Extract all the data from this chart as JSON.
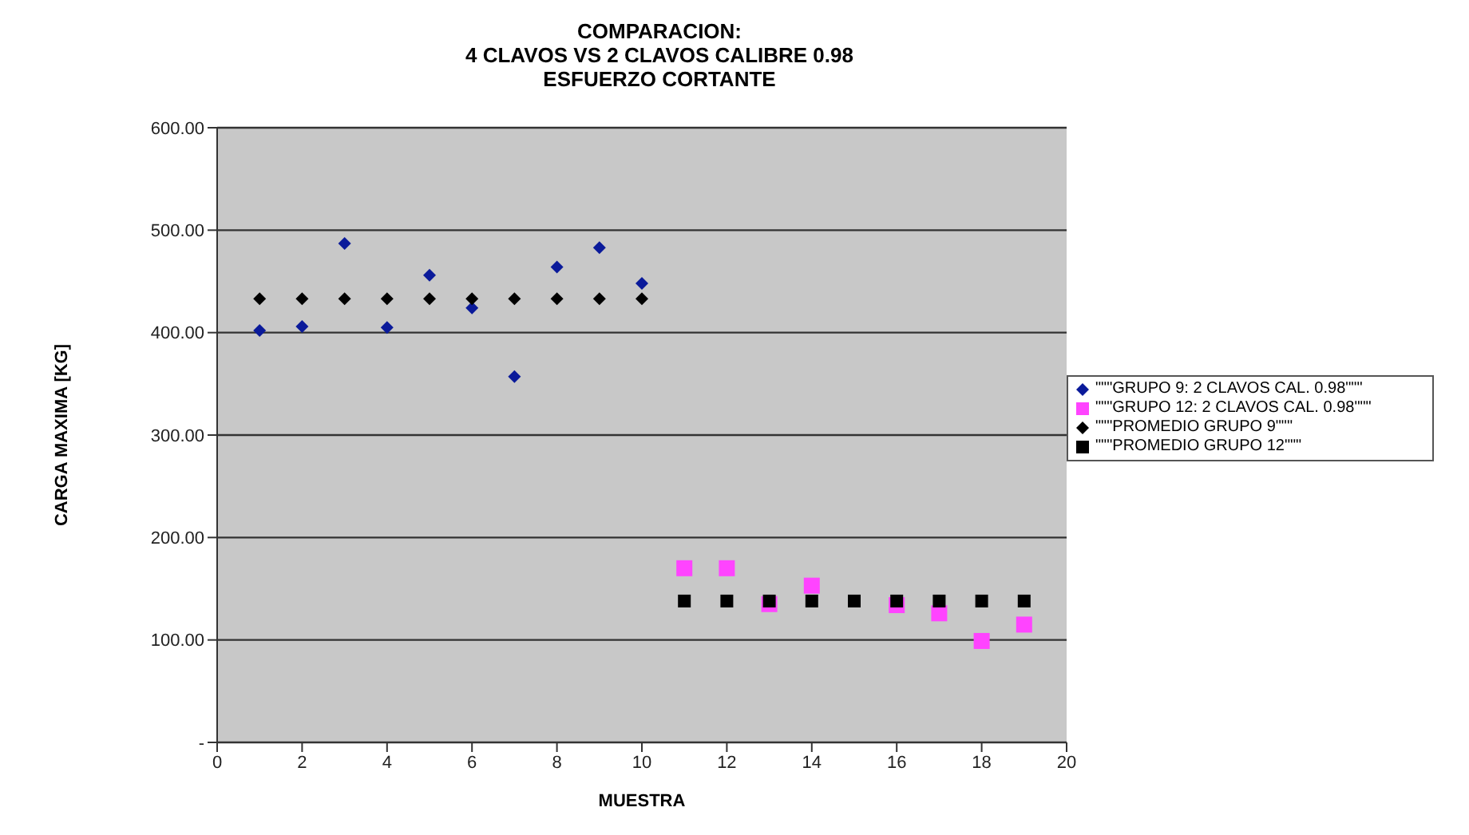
{
  "chart_data": {
    "type": "scatter",
    "title": "COMPARACION:\n4 CLAVOS VS 2 CLAVOS CALIBRE 0.98\nESFUERZO CORTANTE",
    "xlabel": "MUESTRA",
    "ylabel": "CARGA MAXIMA [KG]",
    "series": [
      {
        "name": "\"\"\"GRUPO 9:  2 CLAVOS CAL. 0.98\"\"\"",
        "color": "#0a1a9a",
        "marker": "diamond",
        "x": [
          1,
          2,
          3,
          4,
          5,
          6,
          7,
          8,
          9,
          10
        ],
        "values": [
          402,
          406,
          487,
          405,
          456,
          424,
          357,
          464,
          483,
          448
        ]
      },
      {
        "name": "\"\"\"GRUPO 12: 2 CLAVOS CAL. 0.98\"\"\"",
        "color": "#ff44ff",
        "marker": "square",
        "x": [
          11,
          12,
          13,
          14,
          15,
          16,
          17,
          18,
          19
        ],
        "values": [
          170,
          170,
          135,
          153,
          null,
          134,
          126,
          99,
          115
        ]
      },
      {
        "name": "\"\"\"PROMEDIO GRUPO 9\"\"\"",
        "color": "#000000",
        "marker": "diamond",
        "x": [
          1,
          2,
          3,
          4,
          5,
          6,
          7,
          8,
          9,
          10
        ],
        "values": [
          433,
          433,
          433,
          433,
          433,
          433,
          433,
          433,
          433,
          433
        ]
      },
      {
        "name": "\"\"\"PROMEDIO GRUPO 12\"\"\"",
        "color": "#000000",
        "marker": "square",
        "x": [
          11,
          12,
          13,
          14,
          15,
          16,
          17,
          18,
          19
        ],
        "values": [
          138,
          138,
          138,
          138,
          138,
          138,
          138,
          138,
          138
        ]
      }
    ],
    "xlim": [
      0,
      20
    ],
    "xticks": [
      0,
      2,
      4,
      6,
      8,
      10,
      12,
      14,
      16,
      18,
      20
    ],
    "ylim": [
      0,
      600
    ],
    "yticks": [
      {
        "value": 0,
        "label": "-"
      },
      {
        "value": 100,
        "label": "100.00"
      },
      {
        "value": 200,
        "label": "200.00"
      },
      {
        "value": 300,
        "label": "300.00"
      },
      {
        "value": 400,
        "label": "400.00"
      },
      {
        "value": 500,
        "label": "500.00"
      },
      {
        "value": 600,
        "label": "600.00"
      }
    ],
    "grid": "y",
    "legend": "right"
  }
}
